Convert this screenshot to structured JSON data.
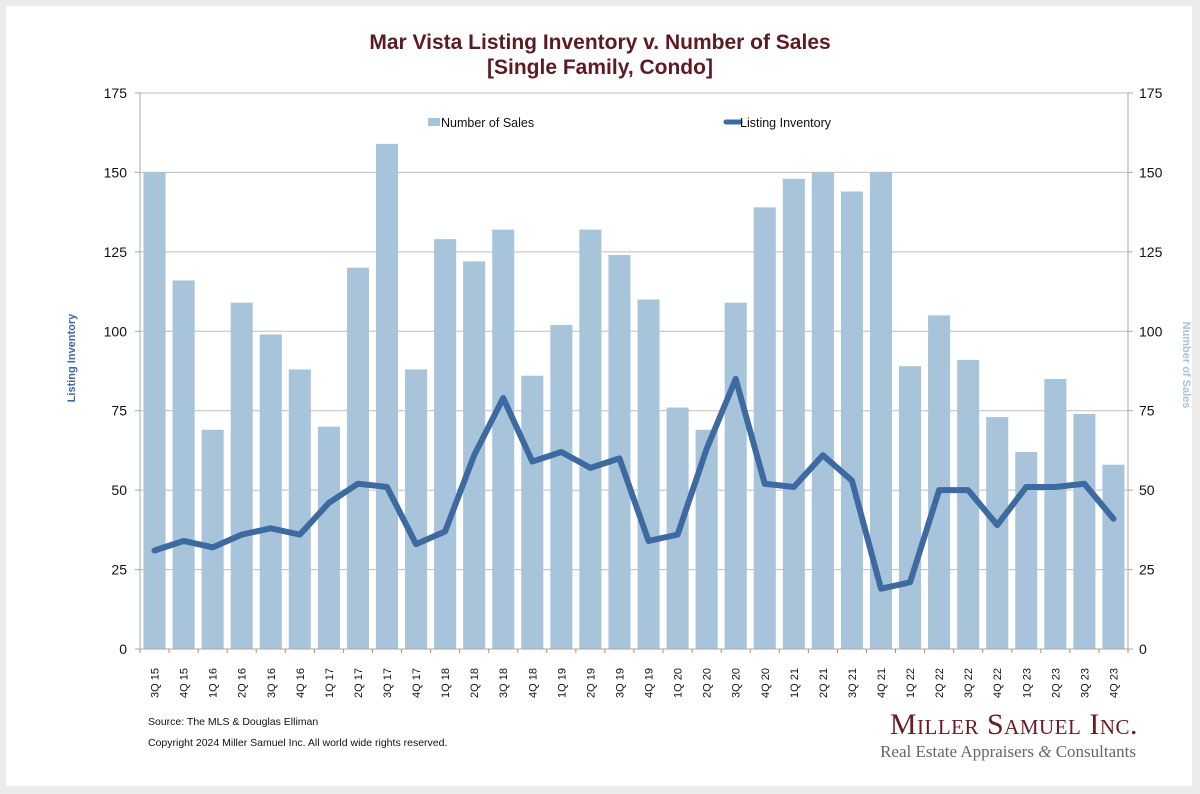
{
  "chart_data": {
    "type": "bar+line",
    "title": "Mar Vista Listing Inventory v. Number of Sales",
    "subtitle": "[Single Family, Condo]",
    "categories": [
      "3Q 15",
      "4Q 15",
      "1Q 16",
      "2Q 16",
      "3Q 16",
      "4Q 16",
      "1Q 17",
      "2Q 17",
      "3Q 17",
      "4Q 17",
      "1Q 18",
      "2Q 18",
      "3Q 18",
      "4Q 18",
      "1Q 19",
      "2Q 19",
      "3Q 19",
      "4Q 19",
      "1Q 20",
      "2Q 20",
      "3Q 20",
      "4Q 20",
      "1Q 21",
      "2Q 21",
      "3Q 21",
      "4Q 21",
      "1Q 22",
      "2Q 22",
      "3Q 22",
      "4Q 22",
      "1Q 23",
      "2Q 23",
      "3Q 23",
      "4Q 23"
    ],
    "series": [
      {
        "name": "Number of Sales",
        "type": "bar",
        "axis": "right",
        "color": "#a7c4da",
        "values": [
          150,
          116,
          69,
          109,
          99,
          88,
          70,
          120,
          159,
          88,
          129,
          122,
          132,
          86,
          102,
          132,
          124,
          110,
          76,
          69,
          109,
          139,
          148,
          150,
          144,
          150,
          89,
          105,
          91,
          73,
          62,
          85,
          74,
          58
        ]
      },
      {
        "name": "Listing Inventory",
        "type": "line",
        "axis": "left",
        "color": "#3d6aa0",
        "values": [
          31,
          34,
          32,
          36,
          38,
          36,
          46,
          52,
          51,
          33,
          37,
          61,
          79,
          59,
          62,
          57,
          60,
          34,
          36,
          63,
          85,
          52,
          51,
          61,
          53,
          19,
          21,
          50,
          50,
          39,
          51,
          51,
          52,
          41
        ]
      }
    ],
    "ylabel_left": "Listing Inventory",
    "ylabel_right": "Number of Sales",
    "ylim": [
      0,
      175
    ],
    "yticks": [
      "0",
      "25",
      "50",
      "75",
      "100",
      "125",
      "150",
      "175"
    ],
    "grid": true,
    "legend": "top-center"
  },
  "footer": {
    "source": "Source: The MLS & Douglas Elliman",
    "copyright": "Copyright 2024 Miller Samuel Inc.  All world wide rights reserved."
  },
  "logo": {
    "name": "Miller Samuel Inc.",
    "tagline_a": "Real Estate Appraisers ",
    "tagline_amp": "&",
    "tagline_b": " Consultants"
  },
  "colors": {
    "title": "#5e1a22",
    "left_axis_label": "#3d6aa0",
    "right_axis_label": "#a7c4da"
  }
}
